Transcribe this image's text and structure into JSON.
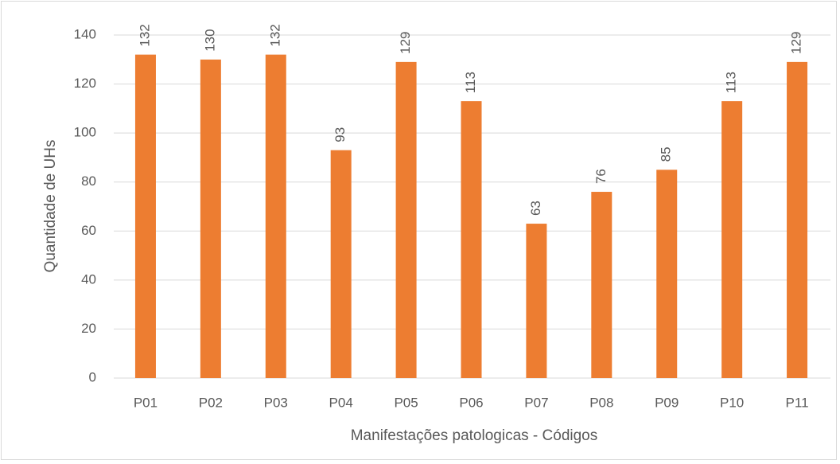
{
  "chart_data": {
    "type": "bar",
    "x_label": "Manifestações patologicas - Códigos",
    "y_label": "Quantidade de UHs",
    "categories": [
      "P01",
      "P02",
      "P03",
      "P04",
      "P05",
      "P06",
      "P07",
      "P08",
      "P09",
      "P10",
      "P11"
    ],
    "values": [
      132,
      130,
      132,
      93,
      129,
      113,
      63,
      76,
      85,
      113,
      129
    ],
    "color": "#ed7d31",
    "ylim": [
      0,
      140
    ],
    "yticks": [
      0,
      20,
      40,
      60,
      80,
      100,
      120,
      140
    ],
    "grid": true
  }
}
